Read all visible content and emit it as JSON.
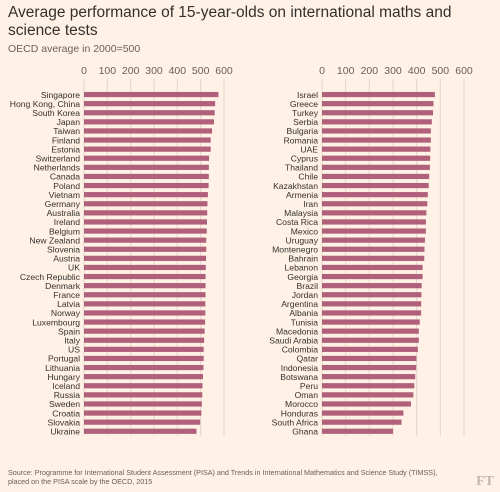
{
  "chart_data": [
    {
      "type": "bar",
      "orientation": "horizontal",
      "title": "Average performance of 15-year-olds on international maths and science tests",
      "subtitle": "OECD average in 2000=500",
      "xlim": [
        0,
        600
      ],
      "xticks": [
        "0",
        "100",
        "200",
        "300",
        "400",
        "500",
        "600"
      ],
      "grid": true,
      "bar_color": "#b0607a",
      "categories": [
        "Singapore",
        "Hong Kong, China",
        "South Korea",
        "Japan",
        "Taiwan",
        "Finland",
        "Estonia",
        "Switzerland",
        "Netherlands",
        "Canada",
        "Poland",
        "Vietnam",
        "Germany",
        "Australia",
        "Ireland",
        "Belgium",
        "New Zealand",
        "Slovenia",
        "Austria",
        "UK",
        "Czech Republic",
        "Denmark",
        "France",
        "Latvia",
        "Norway",
        "Luxembourg",
        "Spain",
        "Italy",
        "US",
        "Portugal",
        "Lithuania",
        "Hungary",
        "Iceland",
        "Russia",
        "Sweden",
        "Croatia",
        "Slovakia",
        "Ukraine"
      ],
      "values": [
        576,
        562,
        560,
        557,
        549,
        543,
        543,
        536,
        535,
        535,
        534,
        531,
        529,
        528,
        527,
        526,
        524,
        524,
        523,
        522,
        521,
        521,
        521,
        520,
        520,
        519,
        517,
        515,
        513,
        513,
        512,
        510,
        508,
        507,
        505,
        503,
        498,
        482
      ]
    },
    {
      "type": "bar",
      "orientation": "horizontal",
      "xlim": [
        0,
        600
      ],
      "xticks": [
        "0",
        "100",
        "200",
        "300",
        "400",
        "500",
        "600"
      ],
      "grid": true,
      "bar_color": "#b0607a",
      "categories": [
        "Israel",
        "Greece",
        "Turkey",
        "Serbia",
        "Bulgaria",
        "Romania",
        "UAE",
        "Cyprus",
        "Thailand",
        "Chile",
        "Kazakhstan",
        "Armenia",
        "Iran",
        "Malaysia",
        "Costa Rica",
        "Mexico",
        "Uruguay",
        "Montenegro",
        "Bahrain",
        "Lebanon",
        "Georgia",
        "Brazil",
        "Jordan",
        "Argentina",
        "Albania",
        "Tunisia",
        "Macedonia",
        "Saudi Arabia",
        "Colombia",
        "Qatar",
        "Indonesia",
        "Botswana",
        "Peru",
        "Oman",
        "Morocco",
        "Honduras",
        "South Africa",
        "Ghana"
      ],
      "values": [
        477,
        471,
        469,
        464,
        460,
        460,
        458,
        457,
        456,
        453,
        451,
        447,
        445,
        441,
        439,
        439,
        435,
        433,
        432,
        425,
        425,
        421,
        420,
        419,
        419,
        413,
        409,
        409,
        405,
        399,
        398,
        394,
        390,
        386,
        376,
        344,
        336,
        300
      ]
    }
  ],
  "source": "Source: Programme for International Student Assessment (PISA) and Trends in International Mathematics and Science Study (TIMSS), placed on the PISA scale by the OECD, 2015",
  "logo_text": "FT"
}
